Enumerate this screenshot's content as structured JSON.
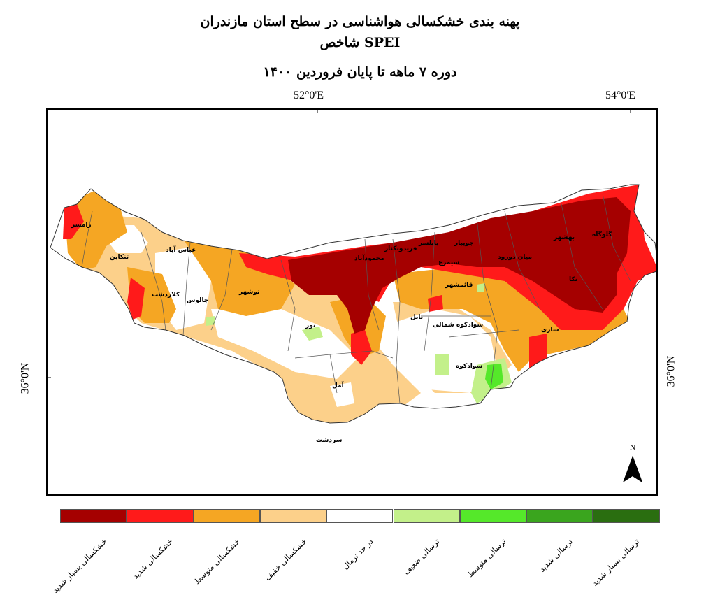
{
  "title": {
    "line1": "پهنه بندی خشکسالی هواشناسی در سطح استان مازندران",
    "line2": "شاخص  SPEI",
    "line3": "دوره  ۷  ماهه تا پایان فروردین ۱۴۰۰"
  },
  "coordinates": {
    "lon1": "52°0'E",
    "lon2": "54°0'E",
    "lat_left": "36°0'N",
    "lat_right": "36°0'N"
  },
  "north_arrow": {
    "label": "N"
  },
  "cities": [
    "رامسر",
    "تنکابن",
    "عباس آباد",
    "کلاردشت",
    "چالوس",
    "نوشهر",
    "نور",
    "محمودآباد",
    "فریدونکنار",
    "بابلسر",
    "جویبار",
    "سیمرغ",
    "میان دورود",
    "بهشهر",
    "گلوگاه",
    "نکا",
    "قائمشهر",
    "بابل",
    "سوادکوه شمالی",
    "سوادکوه",
    "ساری",
    "آمل",
    "سردشت"
  ],
  "legend": [
    {
      "label": "خشکسالی بسیار شدید",
      "color": "#a50000"
    },
    {
      "label": "خشکسالی شدید",
      "color": "#ff1a1a"
    },
    {
      "label": "خشکسالی متوسط",
      "color": "#f5a623"
    },
    {
      "label": "خشکسالی خفیف",
      "color": "#fcd08a"
    },
    {
      "label": "در حد نرمال",
      "color": "#ffffff"
    },
    {
      "label": "ترسالی ضعیف",
      "color": "#c3f08a"
    },
    {
      "label": "ترسالی متوسط",
      "color": "#55e82a"
    },
    {
      "label": "ترسالی شدید",
      "color": "#3aa51e"
    },
    {
      "label": "ترسالی بسیار شدید",
      "color": "#2a6e10"
    }
  ]
}
